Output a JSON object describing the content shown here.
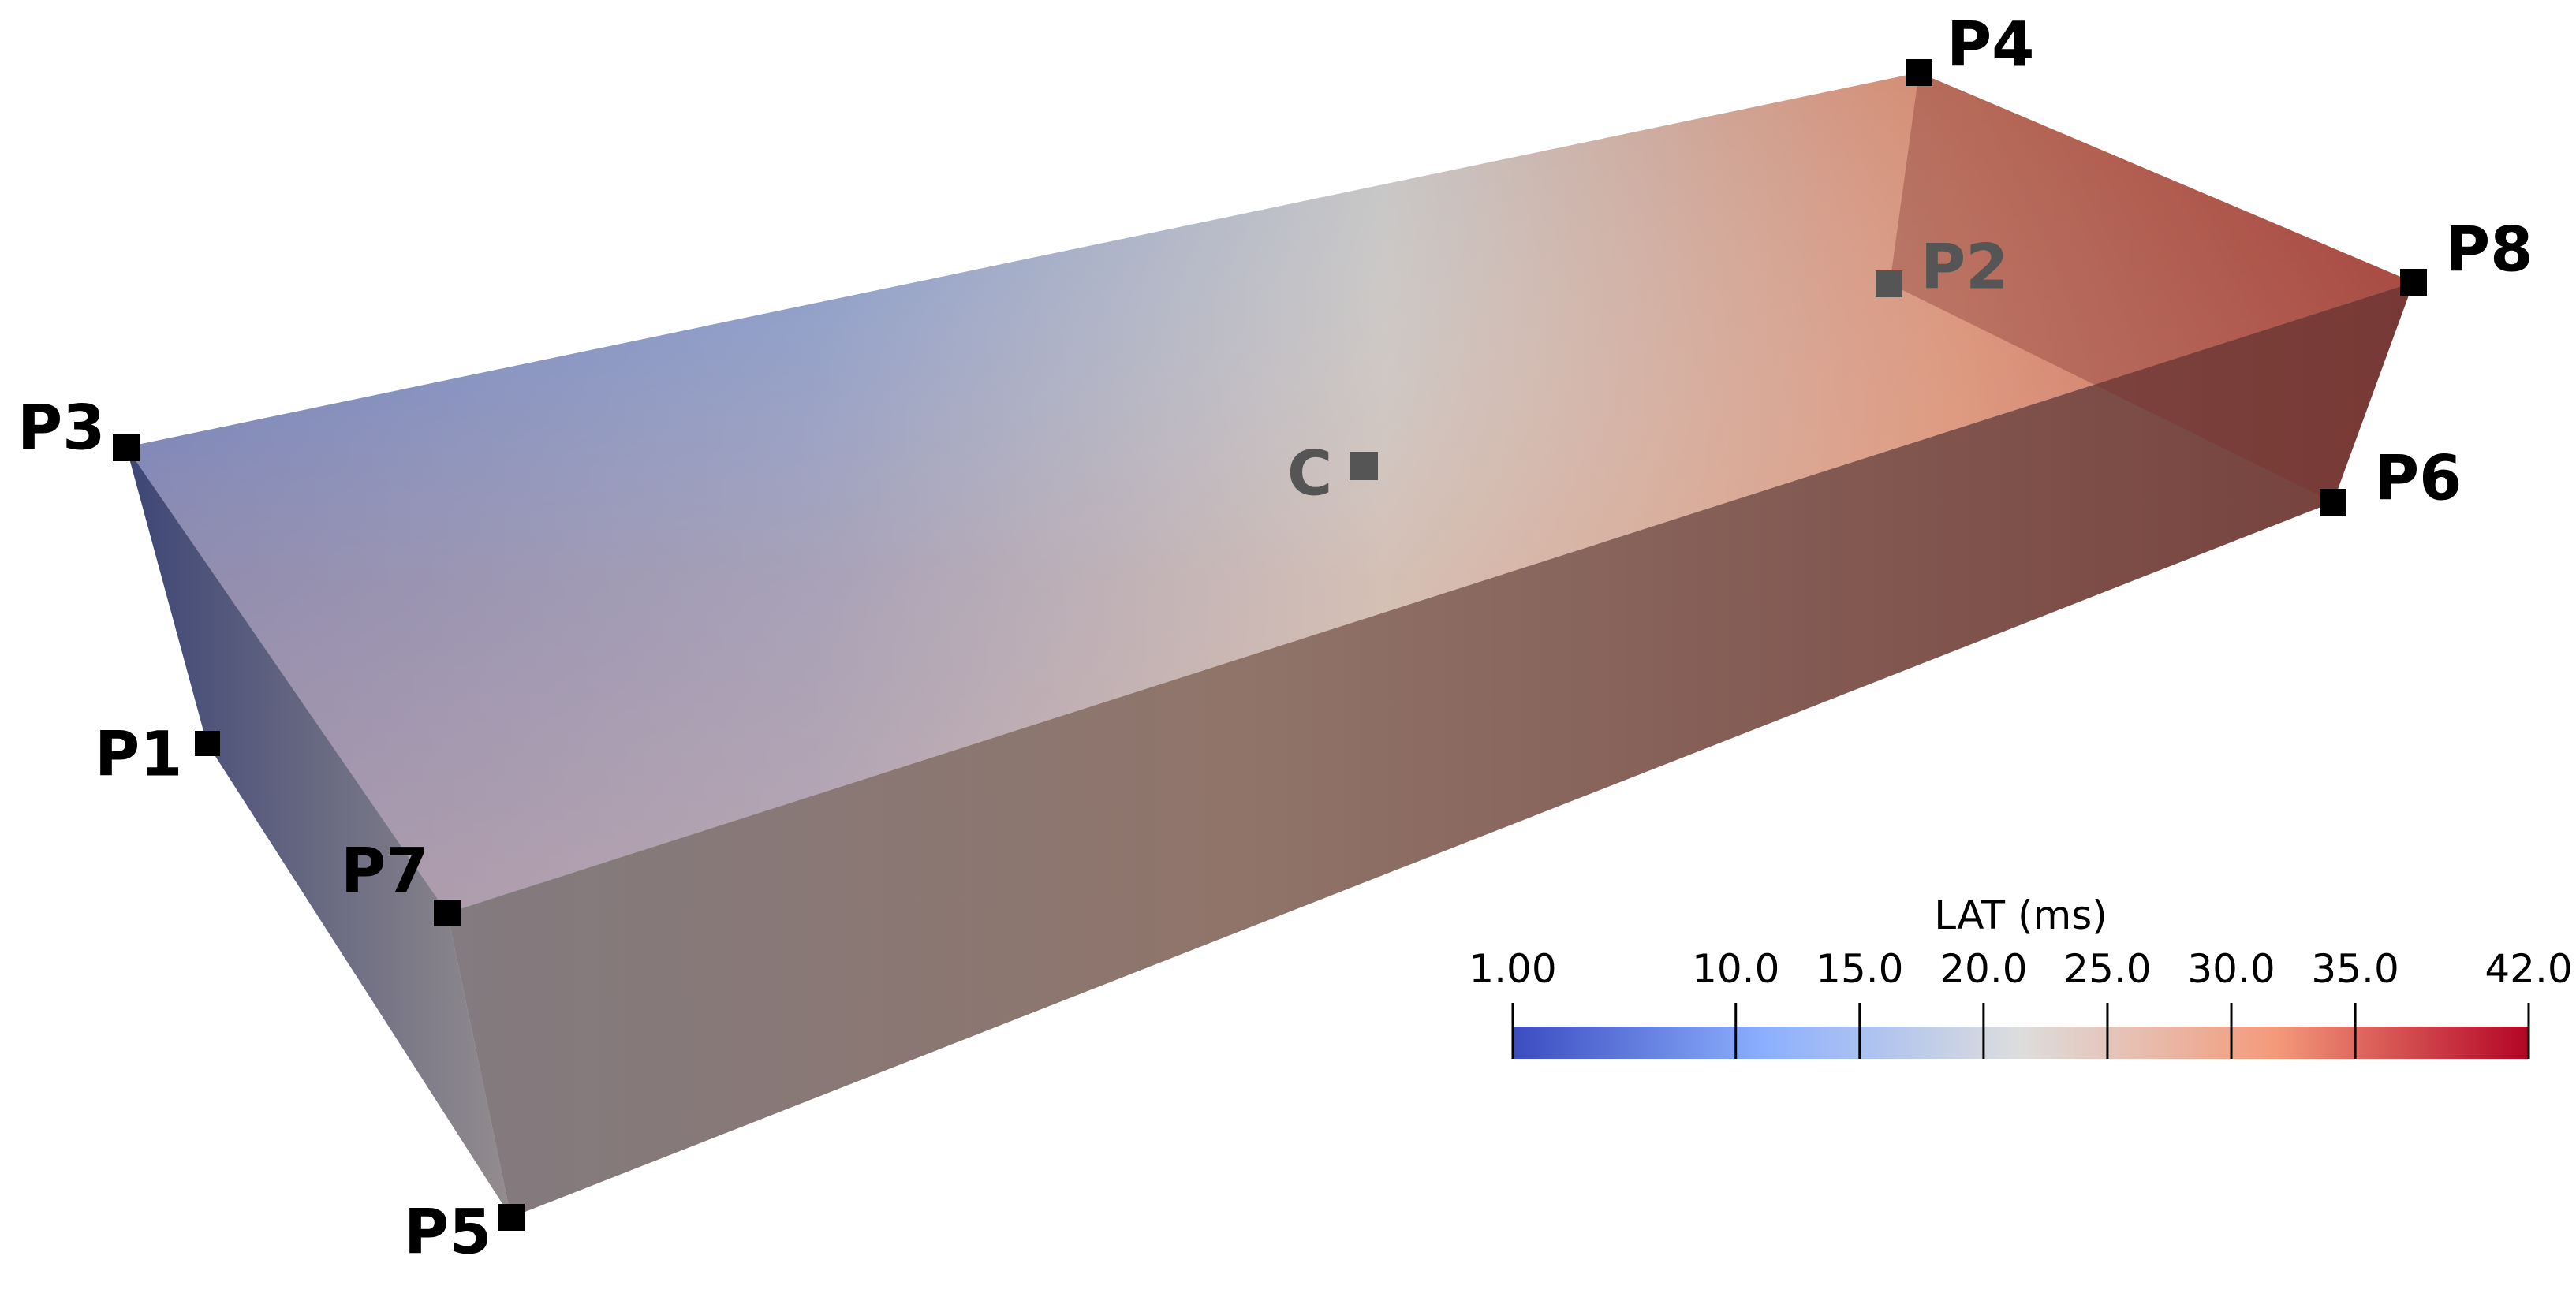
{
  "points": [
    {
      "label": "P1"
    },
    {
      "label": "P2"
    },
    {
      "label": "P3"
    },
    {
      "label": "P4"
    },
    {
      "label": "P5"
    },
    {
      "label": "P6"
    },
    {
      "label": "P7"
    },
    {
      "label": "P8"
    },
    {
      "label": "C"
    }
  ],
  "colorbar": {
    "title": "LAT (ms)",
    "range": [
      1,
      42
    ],
    "colors": [
      "#3b4cc0",
      "#8db0fe",
      "#dddddd",
      "#f49a7b",
      "#b40426"
    ],
    "ticks": [
      {
        "value": 1,
        "label": "1.00"
      },
      {
        "value": 10,
        "label": "10.0"
      },
      {
        "value": 15,
        "label": "15.0"
      },
      {
        "value": 20,
        "label": "20.0"
      },
      {
        "value": 25,
        "label": "25.0"
      },
      {
        "value": 30,
        "label": "30.0"
      },
      {
        "value": 35,
        "label": "35.0"
      },
      {
        "value": 42,
        "label": "42.0"
      }
    ]
  }
}
